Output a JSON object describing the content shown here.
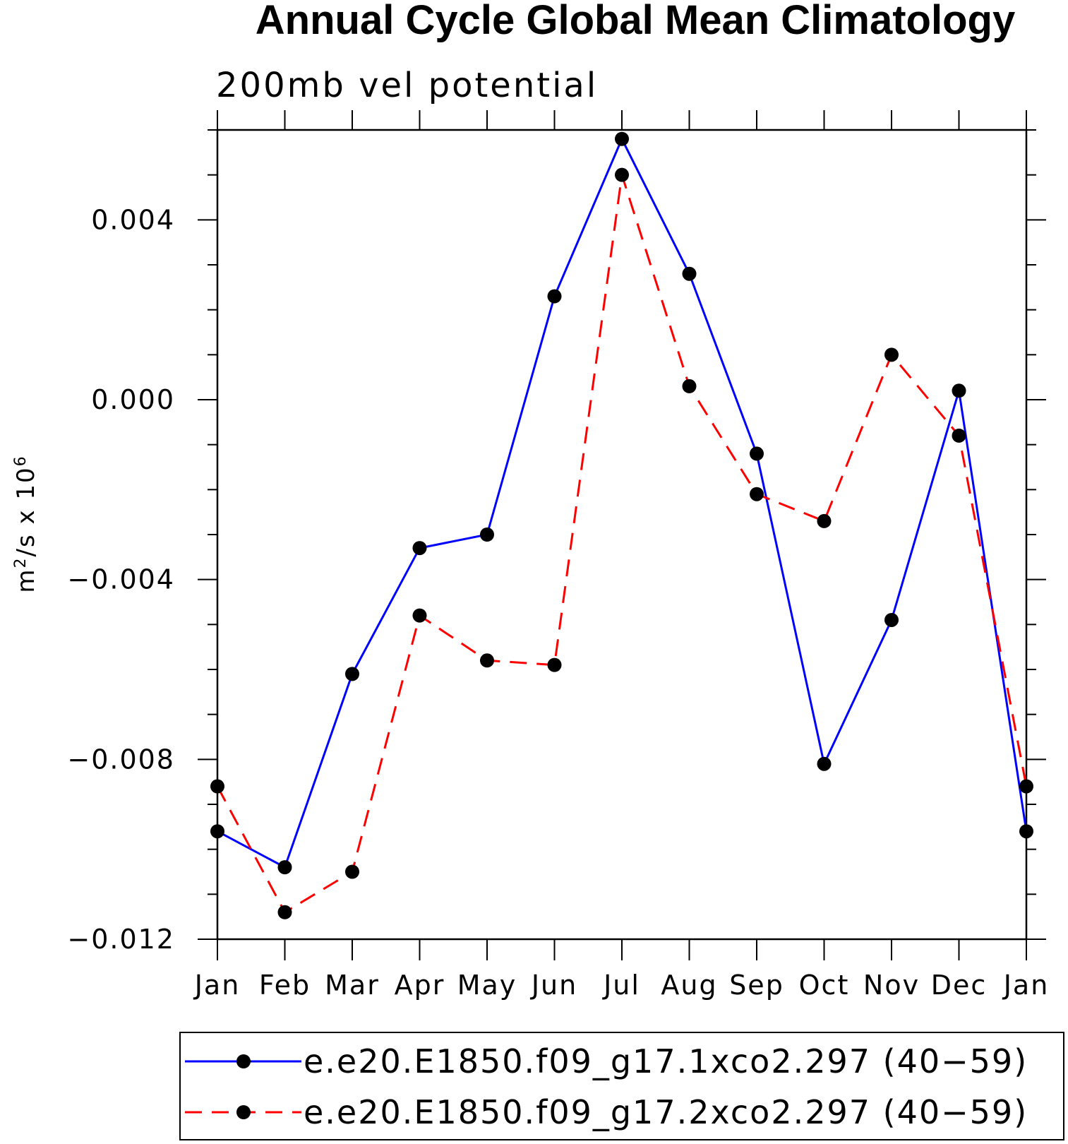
{
  "chart_data": {
    "type": "line",
    "title": "Annual Cycle Global Mean Climatology",
    "subtitle": "200mb vel potential",
    "ylabel": {
      "base": "m",
      "exp1": "2",
      "mid": "/s x 10",
      "exp2": "6"
    },
    "xlabel": "",
    "categories": [
      "Jan",
      "Feb",
      "Mar",
      "Apr",
      "May",
      "Jun",
      "Jul",
      "Aug",
      "Sep",
      "Oct",
      "Nov",
      "Dec",
      "Jan"
    ],
    "ylim": [
      -0.012,
      0.006
    ],
    "yticks": [
      {
        "value": -0.012,
        "label": "−0.012"
      },
      {
        "value": -0.008,
        "label": "−0.008"
      },
      {
        "value": -0.004,
        "label": "−0.004"
      },
      {
        "value": 0.0,
        "label": "0.000"
      },
      {
        "value": 0.004,
        "label": "0.004"
      }
    ],
    "y_minor_step": 0.001,
    "series": [
      {
        "name": "e.e20.E1850.f09_g17.1xco2.297 (40−59)",
        "color": "#0000ff",
        "dash": "solid",
        "marker": "filled-circle",
        "values": [
          -0.0096,
          -0.0104,
          -0.0061,
          -0.0033,
          -0.003,
          0.0023,
          0.0058,
          0.0028,
          -0.0012,
          -0.0081,
          -0.0049,
          0.0002,
          -0.0096
        ]
      },
      {
        "name": "e.e20.E1850.f09_g17.2xco2.297 (40−59)",
        "color": "#ff0000",
        "dash": "dashed",
        "marker": "filled-circle",
        "values": [
          -0.0086,
          -0.0114,
          -0.0105,
          -0.0048,
          -0.0058,
          -0.0059,
          0.005,
          0.0003,
          -0.0021,
          -0.0027,
          0.001,
          -0.0008,
          -0.0086
        ]
      }
    ],
    "legend_position": "bottom",
    "grid": false
  }
}
